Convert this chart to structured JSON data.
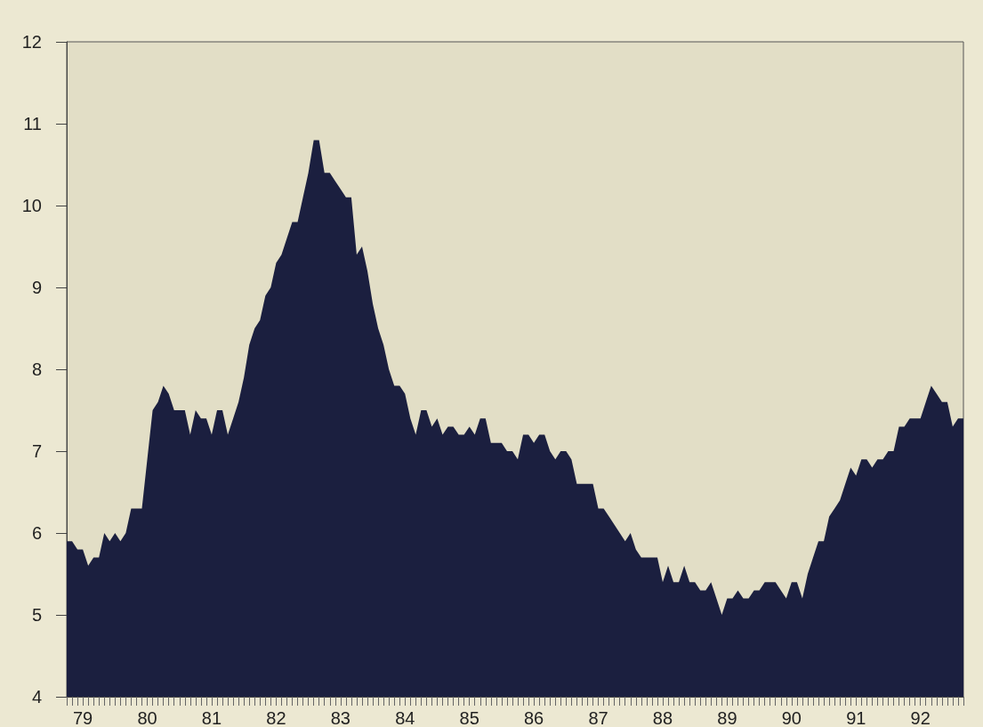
{
  "chart_data": {
    "type": "area",
    "color": "#1b1f3f",
    "categories": [
      null,
      null,
      null,
      "79",
      null,
      null,
      null,
      null,
      null,
      null,
      null,
      null,
      null,
      null,
      null,
      "80",
      null,
      null,
      null,
      null,
      null,
      null,
      null,
      null,
      null,
      null,
      null,
      "81",
      null,
      null,
      null,
      null,
      null,
      null,
      null,
      null,
      null,
      null,
      null,
      "82",
      null,
      null,
      null,
      null,
      null,
      null,
      null,
      null,
      null,
      null,
      null,
      "83",
      null,
      null,
      null,
      null,
      null,
      null,
      null,
      null,
      null,
      null,
      null,
      "84",
      null,
      null,
      null,
      null,
      null,
      null,
      null,
      null,
      null,
      null,
      null,
      "85",
      null,
      null,
      null,
      null,
      null,
      null,
      null,
      null,
      null,
      null,
      null,
      "86",
      null,
      null,
      null,
      null,
      null,
      null,
      null,
      null,
      null,
      null,
      null,
      "87",
      null,
      null,
      null,
      null,
      null,
      null,
      null,
      null,
      null,
      null,
      null,
      "88",
      null,
      null,
      null,
      null,
      null,
      null,
      null,
      null,
      null,
      null,
      null,
      "89",
      null,
      null,
      null,
      null,
      null,
      null,
      null,
      null,
      null,
      null,
      null,
      "90",
      null,
      null,
      null,
      null,
      null,
      null,
      null,
      null,
      null,
      null,
      null,
      "91",
      null,
      null,
      null,
      null,
      null,
      null,
      null,
      null,
      null,
      null,
      null,
      "92",
      null,
      null,
      null,
      null,
      null,
      null,
      null,
      null
    ],
    "values": [
      5.9,
      5.9,
      5.8,
      5.8,
      5.6,
      5.7,
      5.7,
      6.0,
      5.9,
      6.0,
      5.9,
      6.0,
      6.3,
      6.3,
      6.3,
      6.9,
      7.5,
      7.6,
      7.8,
      7.7,
      7.5,
      7.5,
      7.5,
      7.2,
      7.5,
      7.4,
      7.4,
      7.2,
      7.5,
      7.5,
      7.2,
      7.4,
      7.6,
      7.9,
      8.3,
      8.5,
      8.6,
      8.9,
      9.0,
      9.3,
      9.4,
      9.6,
      9.8,
      9.8,
      10.1,
      10.4,
      10.8,
      10.8,
      10.4,
      10.4,
      10.3,
      10.2,
      10.1,
      10.1,
      9.4,
      9.5,
      9.2,
      8.8,
      8.5,
      8.3,
      8.0,
      7.8,
      7.8,
      7.7,
      7.4,
      7.2,
      7.5,
      7.5,
      7.3,
      7.4,
      7.2,
      7.3,
      7.3,
      7.2,
      7.2,
      7.3,
      7.2,
      7.4,
      7.4,
      7.1,
      7.1,
      7.1,
      7.0,
      7.0,
      6.9,
      7.2,
      7.2,
      7.1,
      7.2,
      7.2,
      7.0,
      6.9,
      7.0,
      7.0,
      6.9,
      6.6,
      6.6,
      6.6,
      6.6,
      6.3,
      6.3,
      6.2,
      6.1,
      6.0,
      5.9,
      6.0,
      5.8,
      5.7,
      5.7,
      5.7,
      5.7,
      5.4,
      5.6,
      5.4,
      5.4,
      5.6,
      5.4,
      5.4,
      5.3,
      5.3,
      5.4,
      5.2,
      5.0,
      5.2,
      5.2,
      5.3,
      5.2,
      5.2,
      5.3,
      5.3,
      5.4,
      5.4,
      5.4,
      5.3,
      5.2,
      5.4,
      5.4,
      5.2,
      5.5,
      5.7,
      5.9,
      5.9,
      6.2,
      6.3,
      6.4,
      6.6,
      6.8,
      6.7,
      6.9,
      6.9,
      6.8,
      6.9,
      6.9,
      7.0,
      7.0,
      7.3,
      7.3,
      7.4,
      7.4,
      7.4,
      7.6,
      7.8,
      7.7,
      7.6,
      7.6,
      7.3,
      7.4,
      7.4
    ],
    "ylim": [
      4,
      12
    ],
    "yticks": [
      4,
      5,
      6,
      7,
      8,
      9,
      10,
      11,
      12
    ]
  }
}
